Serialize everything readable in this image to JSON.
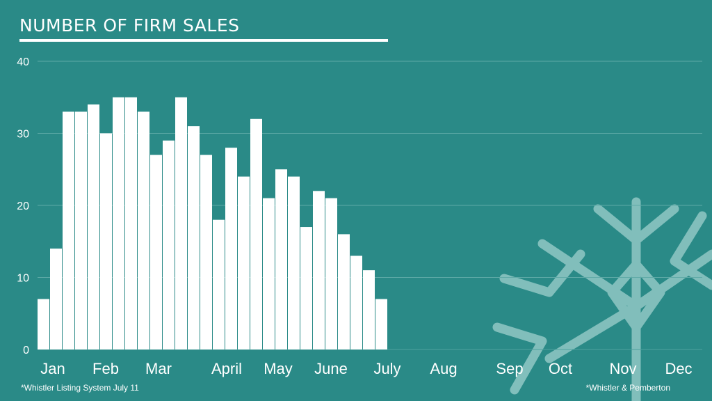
{
  "colors": {
    "background": "#2a8a87",
    "bar": "#ffffff",
    "gridline": "#5faaa7",
    "snowflake": "#9fd0cd"
  },
  "decoration": {
    "snowflake_icon": "snowflake-icon"
  },
  "chart_data": {
    "type": "bar",
    "title": "NUMBER OF FIRM SALES",
    "xlabel": "",
    "ylabel": "",
    "ylim": [
      0,
      40
    ],
    "yticks": [
      0,
      10,
      20,
      30,
      40
    ],
    "grid": true,
    "month_labels": [
      "Jan",
      "Feb",
      "Mar",
      "April",
      "May",
      "June",
      "July",
      "Aug",
      "Sep",
      "Oct",
      "Nov",
      "Dec"
    ],
    "values": [
      7,
      14,
      33,
      33,
      34,
      30,
      35,
      35,
      33,
      27,
      29,
      35,
      31,
      27,
      18,
      28,
      24,
      32,
      21,
      25,
      24,
      17,
      22,
      21,
      16,
      13,
      11,
      7
    ]
  },
  "footnotes": {
    "left": "*Whistler Listing System July 11",
    "right": "*Whistler & Pemberton"
  }
}
